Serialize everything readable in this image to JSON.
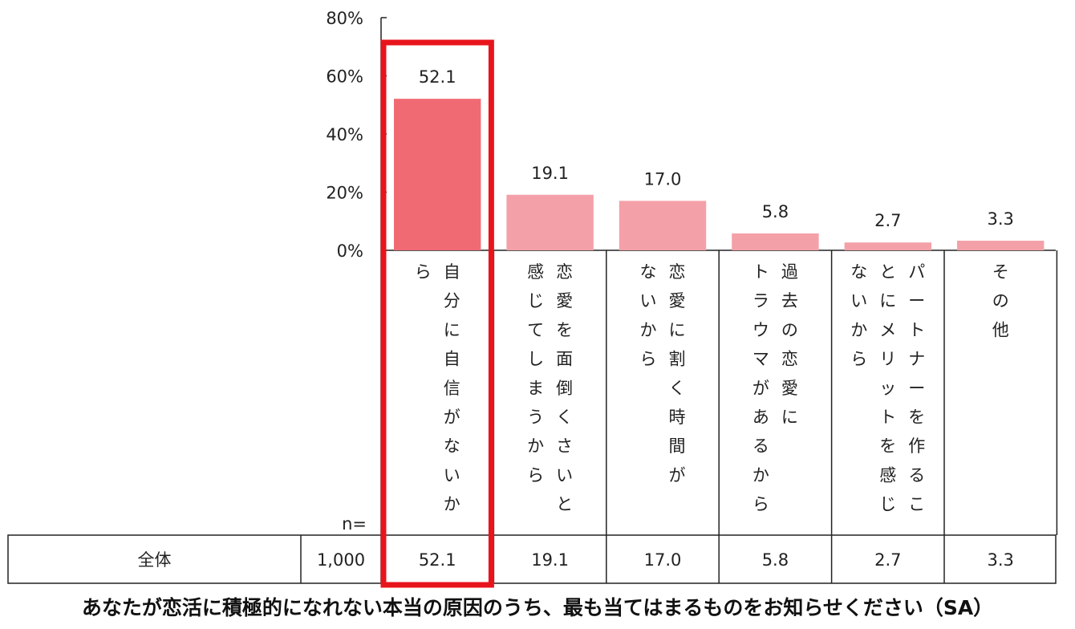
{
  "chart_data": {
    "type": "bar",
    "y_ticks": [
      "0%",
      "20%",
      "40%",
      "60%",
      "80%"
    ],
    "ylim": [
      0,
      80
    ],
    "categories": [
      {
        "id": "no-confidence",
        "lines": [
          "自分に自信がないか",
          "ら"
        ],
        "value": 52.1,
        "value_label": "52.1",
        "table_value": "52.1",
        "highlighted": true
      },
      {
        "id": "troublesome",
        "lines": [
          "恋愛を面倒くさいと",
          "感じてしまうから"
        ],
        "value": 19.1,
        "value_label": "19.1",
        "table_value": "19.1",
        "highlighted": false
      },
      {
        "id": "no-time",
        "lines": [
          "恋愛に割く時間が",
          "ないから"
        ],
        "value": 17.0,
        "value_label": "17.0",
        "table_value": "17.0",
        "highlighted": false
      },
      {
        "id": "trauma",
        "lines": [
          "過去の恋愛に",
          "トラウマがあるから"
        ],
        "value": 5.8,
        "value_label": "5.8",
        "table_value": "5.8",
        "highlighted": false
      },
      {
        "id": "no-merit",
        "lines": [
          "パートナーを作るこ",
          "とにメリットを感じ",
          "ないから"
        ],
        "value": 2.7,
        "value_label": "2.7",
        "table_value": "2.7",
        "highlighted": false
      },
      {
        "id": "other",
        "lines": [
          "その他"
        ],
        "value": 3.3,
        "value_label": "3.3",
        "table_value": "3.3",
        "highlighted": false
      }
    ],
    "table": {
      "n_label": "n=",
      "row_label": "全体",
      "n_value": "1,000"
    },
    "colors": {
      "highlight_bar": "#f06a74",
      "bar": "#f4a0a8",
      "highlight_frame": "#e8141c",
      "grid_line": "#222222"
    }
  },
  "caption": "あなたが恋活に積極的になれない本当の原因のうち、最も当てはまるものをお知らせください（SA）"
}
